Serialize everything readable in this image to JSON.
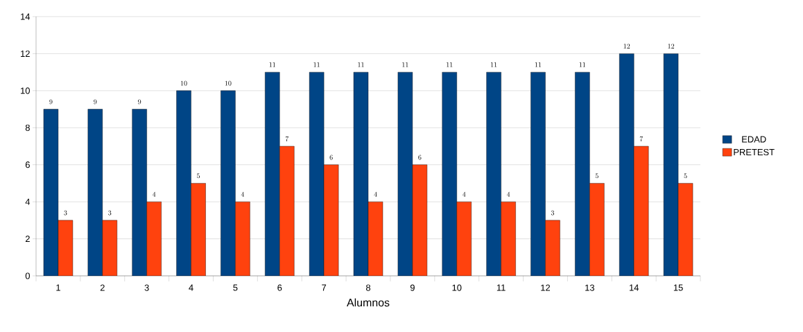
{
  "chart_data": {
    "type": "bar",
    "xlabel": "Alumnos",
    "categories": [
      "1",
      "2",
      "3",
      "4",
      "5",
      "6",
      "7",
      "8",
      "9",
      "10",
      "11",
      "12",
      "13",
      "14",
      "15"
    ],
    "series": [
      {
        "name": "EDAD",
        "color": "#004586",
        "values": [
          9,
          9,
          9,
          10,
          10,
          11,
          11,
          11,
          11,
          11,
          11,
          11,
          11,
          12,
          12
        ]
      },
      {
        "name": "PRETEST",
        "color": "#ff420e",
        "values": [
          3,
          3,
          4,
          5,
          4,
          7,
          6,
          4,
          6,
          4,
          4,
          3,
          5,
          7,
          5
        ]
      }
    ],
    "ylim": [
      0,
      14
    ],
    "yticks": [
      0,
      2,
      4,
      6,
      8,
      10,
      12,
      14
    ],
    "grid": "y",
    "legend": "right",
    "data_labels": true
  }
}
